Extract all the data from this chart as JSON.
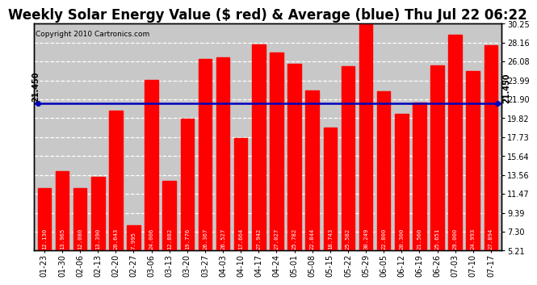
{
  "title": "Weekly Solar Energy Value ($ red) & Average (blue) Thu Jul 22 06:22",
  "copyright": "Copyright 2010 Cartronics.com",
  "categories": [
    "01-23",
    "01-30",
    "02-06",
    "02-13",
    "02-20",
    "02-27",
    "03-06",
    "03-13",
    "03-20",
    "03-27",
    "04-03",
    "04-10",
    "04-17",
    "04-24",
    "05-01",
    "05-08",
    "05-15",
    "05-22",
    "05-29",
    "06-05",
    "06-12",
    "06-19",
    "06-26",
    "07-03",
    "07-10",
    "07-17"
  ],
  "values": [
    12.13,
    13.965,
    12.08,
    13.39,
    20.643,
    7.995,
    24.006,
    12.882,
    19.776,
    26.367,
    26.527,
    17.664,
    27.942,
    27.027,
    25.782,
    22.844,
    18.743,
    25.582,
    30.249,
    22.8,
    20.3,
    21.56,
    25.651,
    29.0,
    24.993,
    27.894
  ],
  "average": 21.45,
  "bar_color": "#ff0000",
  "avg_line_color": "#0000bb",
  "background_color": "#ffffff",
  "plot_bg_color": "#c8c8c8",
  "ylim": [
    5.21,
    30.25
  ],
  "yticks_right": [
    5.21,
    7.3,
    9.39,
    11.47,
    13.56,
    15.64,
    17.73,
    19.82,
    21.9,
    23.99,
    26.08,
    28.16,
    30.25
  ],
  "avg_label": "21.450",
  "title_fontsize": 12,
  "copyright_fontsize": 6.5,
  "tick_fontsize": 7,
  "value_fontsize": 5.2,
  "bar_width": 0.75
}
